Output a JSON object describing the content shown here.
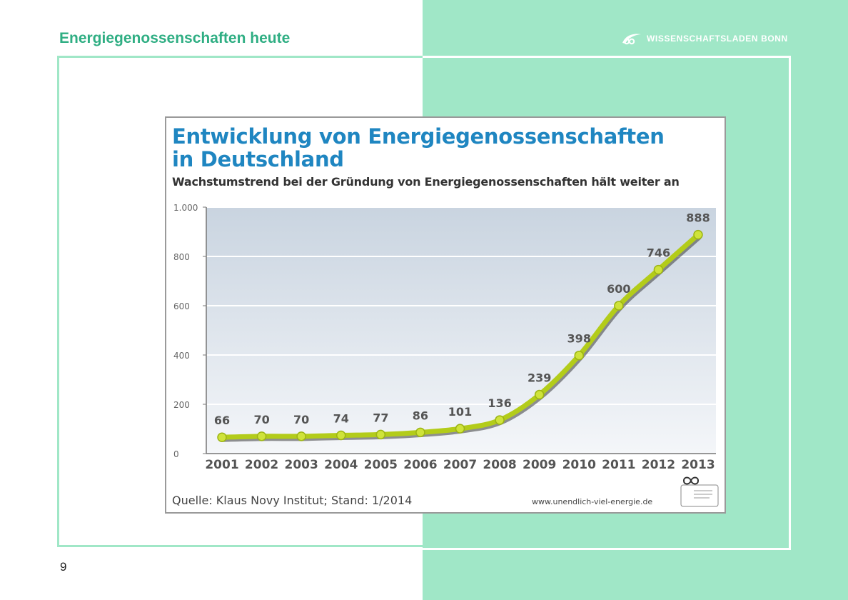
{
  "slide": {
    "title": "Energiegenossenschaften heute",
    "brand": "WISSENSCHAFTSLADEN BONN",
    "page_number": "9"
  },
  "colors": {
    "accent_green": "#a0e7c7",
    "title_green": "#2fae83",
    "chart_title_blue": "#1f86c1",
    "line_green": "#b3cc1a",
    "line_shadow": "#3a3a3a"
  },
  "chart_data": {
    "type": "line",
    "title": "Entwicklung von Energiegenossenschaften in Deutschland",
    "subtitle": "Wachstumstrend bei der Gründung von Energiegenossenschaften hält weiter an",
    "x": [
      "2001",
      "2002",
      "2003",
      "2004",
      "2005",
      "2006",
      "2007",
      "2008",
      "2009",
      "2010",
      "2011",
      "2012",
      "2013"
    ],
    "series": [
      {
        "values": [
          66,
          70,
          70,
          74,
          77,
          86,
          101,
          136,
          239,
          398,
          600,
          746,
          888
        ]
      }
    ],
    "data_labels": [
      "66",
      "70",
      "70",
      "74",
      "77",
      "86",
      "101",
      "136",
      "239",
      "398",
      "600",
      "746",
      "888"
    ],
    "ylim": [
      0,
      1000
    ],
    "yticks": [
      0,
      200,
      400,
      600,
      800,
      1000
    ],
    "ytick_labels": [
      "0",
      "200",
      "400",
      "600",
      "800",
      "1.000"
    ],
    "grid": true,
    "source": "Quelle: Klaus Novy Institut; Stand: 1/2014",
    "url": "www.unendlich-viel-energie.de"
  }
}
